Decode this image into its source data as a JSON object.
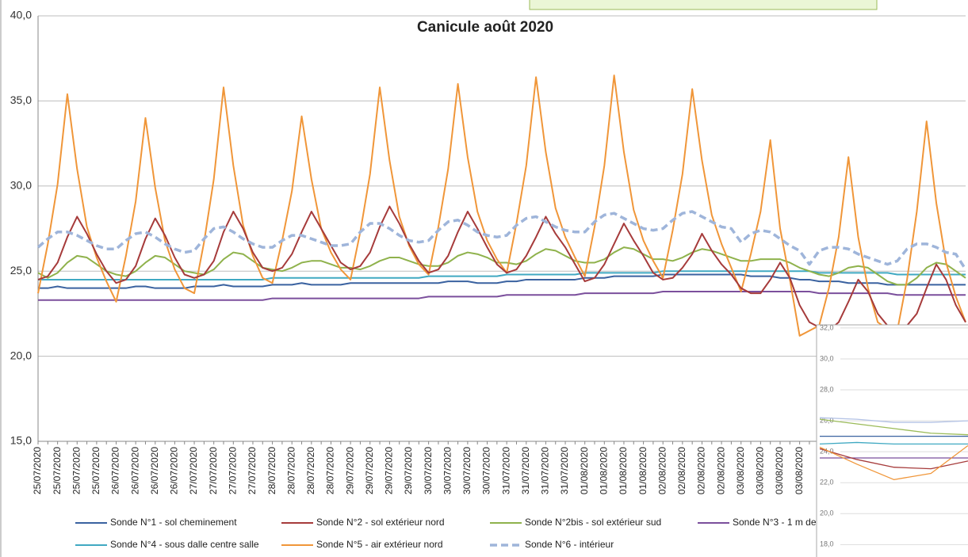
{
  "chart_data": [
    {
      "type": "line",
      "title": "Canicule août 2020",
      "categories": [
        "25/07/2020",
        null,
        "25/07/2020",
        null,
        "25/07/2020",
        null,
        "25/07/2020",
        null,
        "26/07/2020",
        null,
        "26/07/2020",
        null,
        "26/07/2020",
        null,
        "26/07/2020",
        null,
        "27/07/2020",
        null,
        "27/07/2020",
        null,
        "27/07/2020",
        null,
        "27/07/2020",
        null,
        "28/07/2020",
        null,
        "28/07/2020",
        null,
        "28/07/2020",
        null,
        "28/07/2020",
        null,
        "29/07/2020",
        null,
        "29/07/2020",
        null,
        "29/07/2020",
        null,
        "29/07/2020",
        null,
        "30/07/2020",
        null,
        "30/07/2020",
        null,
        "30/07/2020",
        null,
        "30/07/2020",
        null,
        "31/07/2020",
        null,
        "31/07/2020",
        null,
        "31/07/2020",
        null,
        "31/07/2020",
        null,
        "01/08/2020",
        null,
        "01/08/2020",
        null,
        "01/08/2020",
        null,
        "01/08/2020",
        null,
        "02/08/2020",
        null,
        "02/08/2020",
        null,
        "02/08/2020",
        null,
        "02/08/2020",
        null,
        "03/08/2020",
        null,
        "03/08/2020",
        null,
        "03/08/2020",
        null,
        "03/08/2020",
        null,
        null,
        null,
        null,
        null,
        null,
        null,
        null,
        null,
        null,
        null,
        null,
        null,
        null,
        null,
        null,
        null
      ],
      "series": [
        {
          "name": "Sonde N°1 - sol cheminement",
          "color": "#3a62a0",
          "values": [
            24.0,
            24.0,
            24.1,
            24.0,
            24.0,
            24.0,
            24.0,
            24.0,
            24.0,
            24.0,
            24.1,
            24.1,
            24.0,
            24.0,
            24.0,
            24.0,
            24.1,
            24.1,
            24.1,
            24.2,
            24.1,
            24.1,
            24.1,
            24.1,
            24.2,
            24.2,
            24.2,
            24.3,
            24.2,
            24.2,
            24.2,
            24.2,
            24.3,
            24.3,
            24.3,
            24.3,
            24.3,
            24.3,
            24.3,
            24.3,
            24.3,
            24.3,
            24.4,
            24.4,
            24.4,
            24.3,
            24.3,
            24.3,
            24.4,
            24.4,
            24.5,
            24.5,
            24.5,
            24.5,
            24.5,
            24.5,
            24.6,
            24.6,
            24.6,
            24.7,
            24.7,
            24.7,
            24.7,
            24.7,
            24.8,
            24.8,
            24.8,
            24.8,
            24.8,
            24.8,
            24.8,
            24.8,
            24.8,
            24.7,
            24.7,
            24.7,
            24.6,
            24.6,
            24.5,
            24.5,
            24.4,
            24.4,
            24.4,
            24.3,
            24.3,
            24.3,
            24.3,
            24.2,
            24.2,
            24.2,
            24.2,
            24.2,
            24.2,
            24.2,
            24.2,
            24.2
          ]
        },
        {
          "name": "Sonde N°2 - sol extérieur nord",
          "color": "#a63b3b",
          "values": [
            24.5,
            24.7,
            25.5,
            27.0,
            28.2,
            27.2,
            26.0,
            25.0,
            24.3,
            24.5,
            25.3,
            26.9,
            28.1,
            27.1,
            25.8,
            24.8,
            24.6,
            24.8,
            25.6,
            27.3,
            28.5,
            27.5,
            26.1,
            25.2,
            25.0,
            25.2,
            26.0,
            27.3,
            28.5,
            27.5,
            26.5,
            25.5,
            25.1,
            25.3,
            26.1,
            27.6,
            28.8,
            27.8,
            26.6,
            25.6,
            24.9,
            25.1,
            25.9,
            27.3,
            28.5,
            27.5,
            26.4,
            25.4,
            24.9,
            25.1,
            25.9,
            27.0,
            28.2,
            27.2,
            26.4,
            25.4,
            24.4,
            24.6,
            25.4,
            26.6,
            27.8,
            26.8,
            25.9,
            24.9,
            24.5,
            24.6,
            25.2,
            26.0,
            27.2,
            26.2,
            25.4,
            24.8,
            24.0,
            23.7,
            23.7,
            24.5,
            25.5,
            24.6,
            23.0,
            22.0,
            21.7,
            21.5,
            22.0,
            23.2,
            24.5,
            23.8,
            22.5,
            21.8,
            21.6,
            21.8,
            22.5,
            24.0,
            25.4,
            24.5,
            23.0,
            22.0
          ]
        },
        {
          "name": "Sonde N°2bis - sol extérieur sud",
          "color": "#8fb24c",
          "values": [
            24.9,
            24.6,
            24.9,
            25.5,
            25.9,
            25.8,
            25.4,
            25.0,
            24.8,
            24.7,
            25.0,
            25.5,
            25.9,
            25.8,
            25.4,
            25.0,
            24.9,
            24.8,
            25.1,
            25.7,
            26.1,
            26.0,
            25.6,
            25.2,
            25.1,
            25.0,
            25.2,
            25.5,
            25.6,
            25.6,
            25.4,
            25.2,
            25.2,
            25.1,
            25.3,
            25.6,
            25.8,
            25.8,
            25.6,
            25.4,
            25.3,
            25.3,
            25.5,
            25.9,
            26.1,
            26.0,
            25.8,
            25.5,
            25.5,
            25.4,
            25.6,
            26.0,
            26.3,
            26.2,
            25.9,
            25.6,
            25.5,
            25.5,
            25.7,
            26.1,
            26.4,
            26.3,
            26.0,
            25.7,
            25.7,
            25.6,
            25.8,
            26.1,
            26.3,
            26.2,
            26.0,
            25.8,
            25.6,
            25.6,
            25.7,
            25.7,
            25.7,
            25.5,
            25.2,
            25.0,
            24.8,
            24.7,
            24.9,
            25.2,
            25.3,
            25.2,
            24.8,
            24.4,
            24.2,
            24.2,
            24.6,
            25.2,
            25.5,
            25.4,
            25.0,
            24.6
          ]
        },
        {
          "name": "Sonde N°3 - 1 m de",
          "color": "#7b4f9c",
          "values": [
            23.3,
            23.3,
            23.3,
            23.3,
            23.3,
            23.3,
            23.3,
            23.3,
            23.3,
            23.3,
            23.3,
            23.3,
            23.3,
            23.3,
            23.3,
            23.3,
            23.3,
            23.3,
            23.3,
            23.3,
            23.3,
            23.3,
            23.3,
            23.3,
            23.4,
            23.4,
            23.4,
            23.4,
            23.4,
            23.4,
            23.4,
            23.4,
            23.4,
            23.4,
            23.4,
            23.4,
            23.4,
            23.4,
            23.4,
            23.4,
            23.5,
            23.5,
            23.5,
            23.5,
            23.5,
            23.5,
            23.5,
            23.5,
            23.6,
            23.6,
            23.6,
            23.6,
            23.6,
            23.6,
            23.6,
            23.6,
            23.7,
            23.7,
            23.7,
            23.7,
            23.7,
            23.7,
            23.7,
            23.7,
            23.8,
            23.8,
            23.8,
            23.8,
            23.8,
            23.8,
            23.8,
            23.8,
            23.8,
            23.8,
            23.8,
            23.8,
            23.8,
            23.8,
            23.8,
            23.8,
            23.7,
            23.7,
            23.7,
            23.7,
            23.7,
            23.7,
            23.7,
            23.7,
            23.6,
            23.6,
            23.6,
            23.6,
            23.6,
            23.6,
            23.6,
            23.6
          ]
        },
        {
          "name": "Sonde N°4 - sous dalle centre salle",
          "color": "#40a9c2",
          "values": [
            24.5,
            24.5,
            24.5,
            24.5,
            24.5,
            24.5,
            24.5,
            24.5,
            24.5,
            24.5,
            24.5,
            24.5,
            24.5,
            24.5,
            24.5,
            24.5,
            24.5,
            24.5,
            24.5,
            24.5,
            24.5,
            24.5,
            24.5,
            24.5,
            24.6,
            24.6,
            24.6,
            24.6,
            24.6,
            24.6,
            24.6,
            24.6,
            24.6,
            24.6,
            24.6,
            24.6,
            24.6,
            24.6,
            24.6,
            24.6,
            24.7,
            24.7,
            24.7,
            24.7,
            24.7,
            24.7,
            24.7,
            24.7,
            24.8,
            24.8,
            24.8,
            24.8,
            24.8,
            24.8,
            24.8,
            24.8,
            24.9,
            24.9,
            24.9,
            24.9,
            24.9,
            24.9,
            24.9,
            24.9,
            25.0,
            25.0,
            25.0,
            25.0,
            25.0,
            25.0,
            25.0,
            25.0,
            25.0,
            25.0,
            25.0,
            25.0,
            25.0,
            25.0,
            25.0,
            25.0,
            24.9,
            24.9,
            24.9,
            24.9,
            24.9,
            24.9,
            24.9,
            24.9,
            24.8,
            24.8,
            24.8,
            24.8,
            24.8,
            24.8,
            24.8,
            24.8
          ]
        },
        {
          "name": "Sonde N°5 - air extérieur nord",
          "color": "#f09639",
          "values": [
            23.7,
            26.6,
            30.1,
            35.4,
            31.0,
            27.6,
            25.8,
            24.4,
            23.2,
            25.9,
            29.1,
            34.0,
            29.9,
            26.8,
            25.1,
            24.0,
            23.7,
            26.7,
            30.4,
            35.8,
            31.2,
            27.7,
            25.9,
            24.6,
            24.3,
            26.8,
            29.7,
            34.1,
            30.4,
            27.5,
            26.1,
            25.1,
            24.5,
            27.3,
            30.7,
            35.8,
            31.5,
            28.2,
            26.5,
            25.4,
            24.8,
            27.6,
            31.0,
            36.0,
            31.7,
            28.5,
            26.8,
            25.7,
            24.9,
            27.8,
            31.2,
            36.4,
            32.0,
            28.7,
            27.0,
            25.8,
            24.7,
            27.6,
            31.2,
            36.5,
            32.0,
            28.6,
            26.8,
            25.6,
            24.6,
            27.4,
            30.7,
            35.7,
            31.5,
            28.3,
            26.6,
            25.2,
            23.8,
            26.0,
            28.5,
            32.7,
            27.5,
            24.5,
            21.2,
            21.5,
            21.8,
            24.0,
            27.0,
            31.7,
            27.0,
            24.0,
            22.0,
            21.6,
            21.5,
            24.5,
            28.5,
            33.8,
            29.0,
            25.5,
            23.5,
            22.0
          ]
        },
        {
          "name": "Sonde N°6 - intérieur",
          "color": "#9fb5da",
          "dash": true,
          "values": [
            26.4,
            26.9,
            27.3,
            27.3,
            27.1,
            26.8,
            26.5,
            26.3,
            26.3,
            26.8,
            27.2,
            27.3,
            27.0,
            26.6,
            26.3,
            26.1,
            26.2,
            26.9,
            27.5,
            27.6,
            27.3,
            26.9,
            26.6,
            26.4,
            26.4,
            26.8,
            27.1,
            27.1,
            26.9,
            26.7,
            26.5,
            26.5,
            26.6,
            27.3,
            27.8,
            27.8,
            27.5,
            27.1,
            26.8,
            26.7,
            26.8,
            27.4,
            27.9,
            28.0,
            27.7,
            27.3,
            27.1,
            27.0,
            27.1,
            27.7,
            28.1,
            28.2,
            27.9,
            27.6,
            27.4,
            27.3,
            27.3,
            27.9,
            28.3,
            28.4,
            28.1,
            27.8,
            27.5,
            27.4,
            27.5,
            28.0,
            28.4,
            28.5,
            28.2,
            27.9,
            27.6,
            27.5,
            26.7,
            27.2,
            27.4,
            27.3,
            26.9,
            26.5,
            26.2,
            25.4,
            26.2,
            26.4,
            26.4,
            26.3,
            26.0,
            25.8,
            25.6,
            25.4,
            25.6,
            26.3,
            26.6,
            26.6,
            26.4,
            26.1,
            26.0,
            25.1
          ]
        }
      ],
      "ylim": [
        15,
        40
      ],
      "yticks": [
        {
          "value": 15,
          "label": "15,0"
        },
        {
          "value": 20,
          "label": "20,0"
        },
        {
          "value": 25,
          "label": "25,0"
        },
        {
          "value": 30,
          "label": "30,0"
        },
        {
          "value": 35,
          "label": "35,0"
        },
        {
          "value": 40,
          "label": "40,0"
        }
      ],
      "grid": true,
      "legend": "bottom"
    },
    {
      "type": "line",
      "categories": [
        null,
        null,
        null,
        null,
        null
      ],
      "series": [
        {
          "color": "#b4c3e6",
          "values": [
            26.2,
            26.1,
            25.9,
            25.9,
            26.0
          ]
        },
        {
          "color": "#9bbb59",
          "values": [
            26.1,
            25.8,
            25.5,
            25.2,
            25.1
          ]
        },
        {
          "color": "#3a62a0",
          "values": [
            25.0,
            25.0,
            25.0,
            25.0,
            25.0
          ]
        },
        {
          "color": "#40a9c2",
          "values": [
            24.5,
            24.6,
            24.5,
            24.5,
            24.5
          ]
        },
        {
          "color": "#7b4f9c",
          "values": [
            23.6,
            23.6,
            23.6,
            23.6,
            23.6
          ]
        },
        {
          "color": "#a63b3b",
          "values": [
            24.2,
            23.5,
            23.0,
            22.9,
            23.4
          ]
        },
        {
          "color": "#f09639",
          "values": [
            24.3,
            23.2,
            22.2,
            22.6,
            24.4
          ]
        }
      ],
      "ylim": [
        17.2,
        32.2
      ],
      "yticks": [
        {
          "value": 18,
          "label": "18,0"
        },
        {
          "value": 20,
          "label": "20,0"
        },
        {
          "value": 22,
          "label": "22,0"
        },
        {
          "value": 24,
          "label": "24,0"
        },
        {
          "value": 26,
          "label": "26,0"
        },
        {
          "value": 28,
          "label": "28,0"
        },
        {
          "value": 30,
          "label": "30,0"
        },
        {
          "value": 32,
          "label": "32,0"
        }
      ],
      "grid": true
    }
  ]
}
